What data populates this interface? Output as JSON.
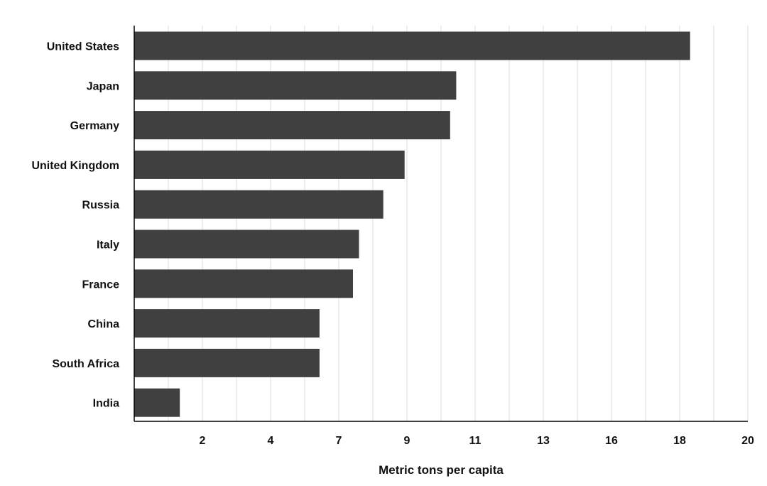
{
  "chart_data": {
    "type": "bar",
    "orientation": "horizontal",
    "categories": [
      "United States",
      "Japan",
      "Germany",
      "United Kingdom",
      "Russia",
      "Italy",
      "France",
      "China",
      "South Africa",
      "India"
    ],
    "values": [
      18.3,
      10.6,
      10.4,
      8.9,
      8.2,
      7.4,
      7.2,
      6.1,
      6.1,
      1.5
    ],
    "xlabel": "Metric tons per capita",
    "ylabel": "",
    "title": "",
    "xticks": [
      "2",
      "4",
      "7",
      "9",
      "11",
      "13",
      "16",
      "18",
      "20"
    ],
    "xlim": [
      0,
      20.2
    ],
    "grid": "vertical",
    "legend": "none",
    "bar_color": "#404040",
    "grid_color": "#dcdcdc",
    "axis_color": "#000000"
  }
}
